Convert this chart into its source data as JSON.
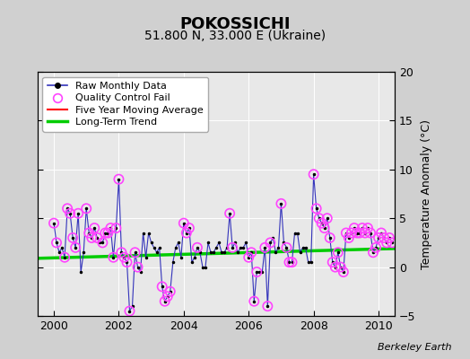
{
  "title": "POKOSSICHI",
  "subtitle": "51.800 N, 33.000 E (Ukraine)",
  "ylabel": "Temperature Anomaly (°C)",
  "watermark": "Berkeley Earth",
  "xlim": [
    1999.5,
    2010.5
  ],
  "ylim": [
    -5,
    20
  ],
  "yticks": [
    -5,
    0,
    5,
    10,
    15,
    20
  ],
  "xticks": [
    2000,
    2002,
    2004,
    2006,
    2008,
    2010
  ],
  "raw_data": [
    [
      2000.0,
      4.5
    ],
    [
      2000.083,
      2.5
    ],
    [
      2000.167,
      1.5
    ],
    [
      2000.25,
      2.0
    ],
    [
      2000.333,
      1.0
    ],
    [
      2000.417,
      6.0
    ],
    [
      2000.5,
      5.5
    ],
    [
      2000.583,
      3.0
    ],
    [
      2000.667,
      2.0
    ],
    [
      2000.75,
      5.5
    ],
    [
      2000.833,
      -0.5
    ],
    [
      2000.917,
      1.5
    ],
    [
      2001.0,
      6.0
    ],
    [
      2001.083,
      3.5
    ],
    [
      2001.167,
      3.0
    ],
    [
      2001.25,
      4.0
    ],
    [
      2001.333,
      3.0
    ],
    [
      2001.417,
      2.5
    ],
    [
      2001.5,
      2.5
    ],
    [
      2001.583,
      3.5
    ],
    [
      2001.667,
      3.5
    ],
    [
      2001.75,
      4.0
    ],
    [
      2001.833,
      1.0
    ],
    [
      2001.917,
      4.0
    ],
    [
      2002.0,
      9.0
    ],
    [
      2002.083,
      1.5
    ],
    [
      2002.167,
      1.0
    ],
    [
      2002.25,
      0.5
    ],
    [
      2002.333,
      -4.5
    ],
    [
      2002.417,
      -4.0
    ],
    [
      2002.5,
      1.5
    ],
    [
      2002.583,
      0.0
    ],
    [
      2002.667,
      -0.5
    ],
    [
      2002.75,
      3.5
    ],
    [
      2002.833,
      1.0
    ],
    [
      2002.917,
      3.5
    ],
    [
      2003.0,
      2.5
    ],
    [
      2003.083,
      2.0
    ],
    [
      2003.167,
      1.5
    ],
    [
      2003.25,
      2.0
    ],
    [
      2003.333,
      -2.0
    ],
    [
      2003.417,
      -3.5
    ],
    [
      2003.5,
      -3.0
    ],
    [
      2003.583,
      -2.5
    ],
    [
      2003.667,
      0.5
    ],
    [
      2003.75,
      2.0
    ],
    [
      2003.833,
      2.5
    ],
    [
      2003.917,
      1.0
    ],
    [
      2004.0,
      4.5
    ],
    [
      2004.083,
      3.5
    ],
    [
      2004.167,
      4.0
    ],
    [
      2004.25,
      0.5
    ],
    [
      2004.333,
      1.0
    ],
    [
      2004.417,
      2.0
    ],
    [
      2004.5,
      1.5
    ],
    [
      2004.583,
      0.0
    ],
    [
      2004.667,
      0.0
    ],
    [
      2004.75,
      2.5
    ],
    [
      2004.833,
      1.5
    ],
    [
      2004.917,
      1.5
    ],
    [
      2005.0,
      2.0
    ],
    [
      2005.083,
      2.5
    ],
    [
      2005.167,
      1.5
    ],
    [
      2005.25,
      1.5
    ],
    [
      2005.333,
      2.0
    ],
    [
      2005.417,
      5.5
    ],
    [
      2005.5,
      2.0
    ],
    [
      2005.583,
      2.5
    ],
    [
      2005.667,
      1.5
    ],
    [
      2005.75,
      2.0
    ],
    [
      2005.833,
      2.0
    ],
    [
      2005.917,
      2.5
    ],
    [
      2006.0,
      1.0
    ],
    [
      2006.083,
      1.5
    ],
    [
      2006.167,
      -3.5
    ],
    [
      2006.25,
      -0.5
    ],
    [
      2006.333,
      -0.5
    ],
    [
      2006.417,
      -0.5
    ],
    [
      2006.5,
      2.0
    ],
    [
      2006.583,
      -4.0
    ],
    [
      2006.667,
      2.5
    ],
    [
      2006.75,
      3.0
    ],
    [
      2006.833,
      1.5
    ],
    [
      2006.917,
      2.0
    ],
    [
      2007.0,
      6.5
    ],
    [
      2007.083,
      2.5
    ],
    [
      2007.167,
      2.0
    ],
    [
      2007.25,
      0.5
    ],
    [
      2007.333,
      0.5
    ],
    [
      2007.417,
      3.5
    ],
    [
      2007.5,
      3.5
    ],
    [
      2007.583,
      1.5
    ],
    [
      2007.667,
      2.0
    ],
    [
      2007.75,
      2.0
    ],
    [
      2007.833,
      0.5
    ],
    [
      2007.917,
      0.5
    ],
    [
      2008.0,
      9.5
    ],
    [
      2008.083,
      6.0
    ],
    [
      2008.167,
      5.0
    ],
    [
      2008.25,
      4.5
    ],
    [
      2008.333,
      4.0
    ],
    [
      2008.417,
      5.0
    ],
    [
      2008.5,
      3.0
    ],
    [
      2008.583,
      0.5
    ],
    [
      2008.667,
      0.0
    ],
    [
      2008.75,
      1.5
    ],
    [
      2008.833,
      0.0
    ],
    [
      2008.917,
      -0.5
    ],
    [
      2009.0,
      3.5
    ],
    [
      2009.083,
      3.0
    ],
    [
      2009.167,
      3.5
    ],
    [
      2009.25,
      4.0
    ],
    [
      2009.333,
      3.5
    ],
    [
      2009.417,
      3.5
    ],
    [
      2009.5,
      4.0
    ],
    [
      2009.583,
      3.5
    ],
    [
      2009.667,
      4.0
    ],
    [
      2009.75,
      3.5
    ],
    [
      2009.833,
      1.5
    ],
    [
      2009.917,
      2.0
    ],
    [
      2010.0,
      3.0
    ],
    [
      2010.083,
      3.5
    ],
    [
      2010.167,
      3.0
    ],
    [
      2010.25,
      2.5
    ],
    [
      2010.333,
      3.0
    ],
    [
      2010.417,
      2.5
    ]
  ],
  "qc_fail": [
    [
      2000.0,
      4.5
    ],
    [
      2000.083,
      2.5
    ],
    [
      2000.333,
      1.0
    ],
    [
      2000.417,
      6.0
    ],
    [
      2000.5,
      5.5
    ],
    [
      2000.583,
      3.0
    ],
    [
      2000.667,
      2.0
    ],
    [
      2000.75,
      5.5
    ],
    [
      2001.0,
      6.0
    ],
    [
      2001.083,
      3.5
    ],
    [
      2001.167,
      3.0
    ],
    [
      2001.25,
      4.0
    ],
    [
      2001.333,
      3.0
    ],
    [
      2001.5,
      2.5
    ],
    [
      2001.583,
      3.5
    ],
    [
      2001.667,
      3.5
    ],
    [
      2001.75,
      4.0
    ],
    [
      2001.833,
      1.0
    ],
    [
      2001.917,
      4.0
    ],
    [
      2002.0,
      9.0
    ],
    [
      2002.083,
      1.5
    ],
    [
      2002.167,
      1.0
    ],
    [
      2002.25,
      0.5
    ],
    [
      2002.333,
      -4.5
    ],
    [
      2002.5,
      1.5
    ],
    [
      2002.583,
      0.0
    ],
    [
      2003.333,
      -2.0
    ],
    [
      2003.417,
      -3.5
    ],
    [
      2003.5,
      -3.0
    ],
    [
      2003.583,
      -2.5
    ],
    [
      2004.0,
      4.5
    ],
    [
      2004.083,
      3.5
    ],
    [
      2004.167,
      4.0
    ],
    [
      2004.417,
      2.0
    ],
    [
      2005.417,
      5.5
    ],
    [
      2005.5,
      2.0
    ],
    [
      2006.0,
      1.0
    ],
    [
      2006.083,
      1.5
    ],
    [
      2006.167,
      -3.5
    ],
    [
      2006.25,
      -0.5
    ],
    [
      2006.5,
      2.0
    ],
    [
      2006.583,
      -4.0
    ],
    [
      2006.667,
      2.5
    ],
    [
      2007.0,
      6.5
    ],
    [
      2007.167,
      2.0
    ],
    [
      2007.25,
      0.5
    ],
    [
      2007.333,
      0.5
    ],
    [
      2008.0,
      9.5
    ],
    [
      2008.083,
      6.0
    ],
    [
      2008.167,
      5.0
    ],
    [
      2008.25,
      4.5
    ],
    [
      2008.333,
      4.0
    ],
    [
      2008.417,
      5.0
    ],
    [
      2008.5,
      3.0
    ],
    [
      2008.583,
      0.5
    ],
    [
      2008.667,
      0.0
    ],
    [
      2008.75,
      1.5
    ],
    [
      2008.833,
      0.0
    ],
    [
      2008.917,
      -0.5
    ],
    [
      2009.0,
      3.5
    ],
    [
      2009.083,
      3.0
    ],
    [
      2009.167,
      3.5
    ],
    [
      2009.25,
      4.0
    ],
    [
      2009.333,
      3.5
    ],
    [
      2009.417,
      3.5
    ],
    [
      2009.5,
      4.0
    ],
    [
      2009.583,
      3.5
    ],
    [
      2009.667,
      4.0
    ],
    [
      2009.75,
      3.5
    ],
    [
      2009.833,
      1.5
    ],
    [
      2009.917,
      2.0
    ],
    [
      2010.0,
      3.0
    ],
    [
      2010.083,
      3.5
    ],
    [
      2010.167,
      3.0
    ],
    [
      2010.25,
      2.5
    ],
    [
      2010.333,
      3.0
    ],
    [
      2010.417,
      2.5
    ]
  ],
  "trend_x": [
    1999.5,
    2010.5
  ],
  "trend_y": [
    0.9,
    1.9
  ],
  "raw_color": "#3333bb",
  "trend_color": "#00cc00",
  "qc_color": "#ff44ff",
  "bg_color": "#e8e8e8",
  "outer_bg": "#d0d0d0",
  "title_fontsize": 13,
  "subtitle_fontsize": 10,
  "tick_fontsize": 9,
  "ylabel_fontsize": 9,
  "legend_fontsize": 8
}
